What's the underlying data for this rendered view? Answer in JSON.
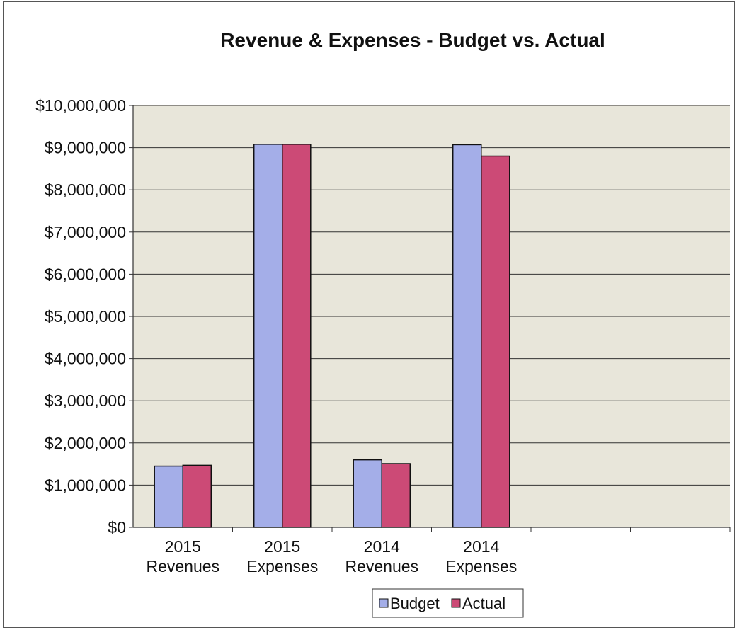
{
  "chart_data": {
    "type": "bar",
    "title": "Revenue & Expenses - Budget vs. Actual",
    "categories": [
      [
        "2015",
        "Revenues"
      ],
      [
        "2015",
        "Expenses"
      ],
      [
        "2014",
        "Revenues"
      ],
      [
        "2014",
        "Expenses"
      ]
    ],
    "series": [
      {
        "name": "Budget",
        "color": "#a4aee8",
        "values": [
          1450000,
          9080000,
          1600000,
          9070000
        ]
      },
      {
        "name": "Actual",
        "color": "#cc4a76",
        "values": [
          1470000,
          9080000,
          1510000,
          8800000
        ]
      }
    ],
    "empty_slots_after": 2,
    "ylim": [
      0,
      10000000
    ],
    "yticks": [
      "$0",
      "$1,000,000",
      "$2,000,000",
      "$3,000,000",
      "$4,000,000",
      "$5,000,000",
      "$6,000,000",
      "$7,000,000",
      "$8,000,000",
      "$9,000,000",
      "$10,000,000"
    ],
    "grid": "horizontal",
    "plot_background": "#e8e6da",
    "legend_position": "bottom"
  }
}
